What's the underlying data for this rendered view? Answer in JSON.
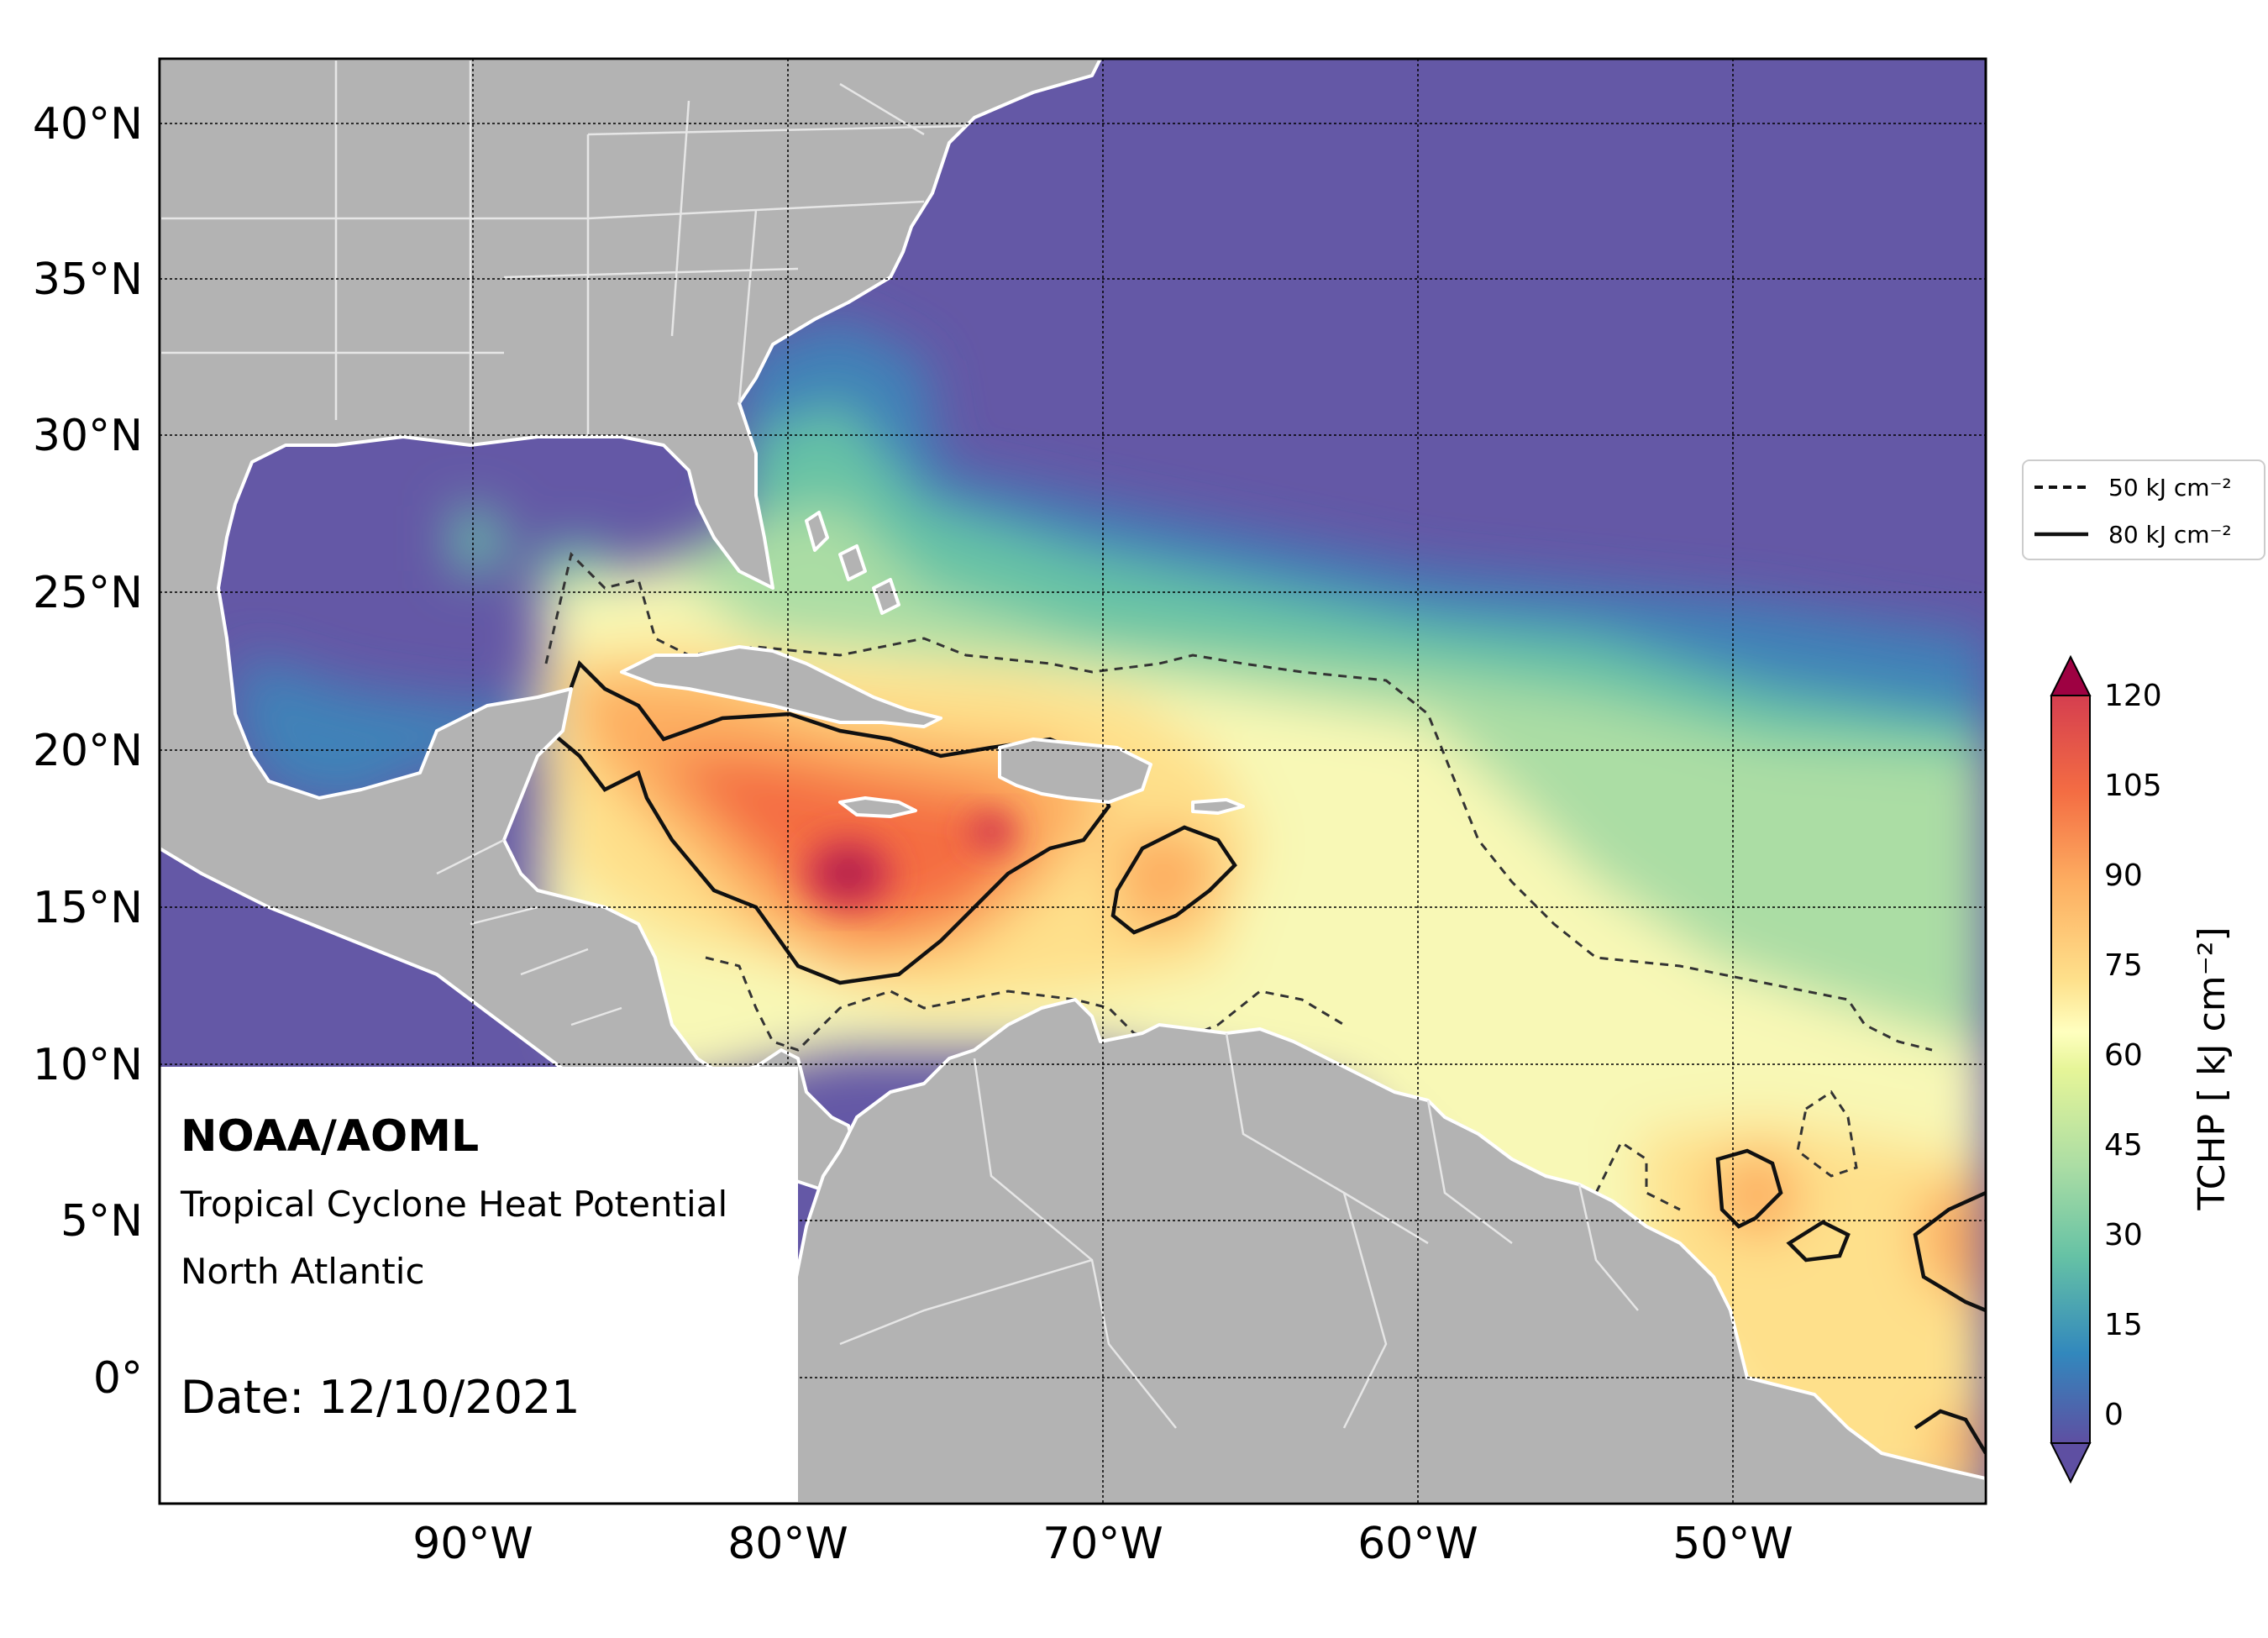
{
  "map": {
    "lat_labels": [
      "40°N",
      "35°N",
      "30°N",
      "25°N",
      "20°N",
      "15°N",
      "10°N",
      "5°N",
      "0°"
    ],
    "lon_labels": [
      "90°W",
      "80°W",
      "70°W",
      "60°W",
      "50°W"
    ],
    "colors": {
      "land": "#b3b3b3",
      "coast": "#ffffff",
      "cold": "#6458a6",
      "cool": "#3f82b8",
      "teal": "#66c2a5",
      "green": "#abdda4",
      "lightgreen": "#d9ef9b",
      "cream": "#f8f8b6",
      "yellow": "#fee08b",
      "orange": "#fdae61",
      "redorange": "#f46d43",
      "red": "#d53e4f",
      "darkred": "#9e0142"
    }
  },
  "legend": {
    "dashed_label": "50 kJ cm⁻²",
    "solid_label": "80 kJ cm⁻²"
  },
  "colorbar": {
    "ticks": [
      "120",
      "105",
      "90",
      "75",
      "60",
      "45",
      "30",
      "15",
      "0"
    ],
    "label": "TCHP [ kJ cm⁻²]"
  },
  "info": {
    "org": "NOAA/AOML",
    "title": "Tropical Cyclone Heat Potential",
    "region": "North Atlantic",
    "date": "Date: 12/10/2021"
  }
}
